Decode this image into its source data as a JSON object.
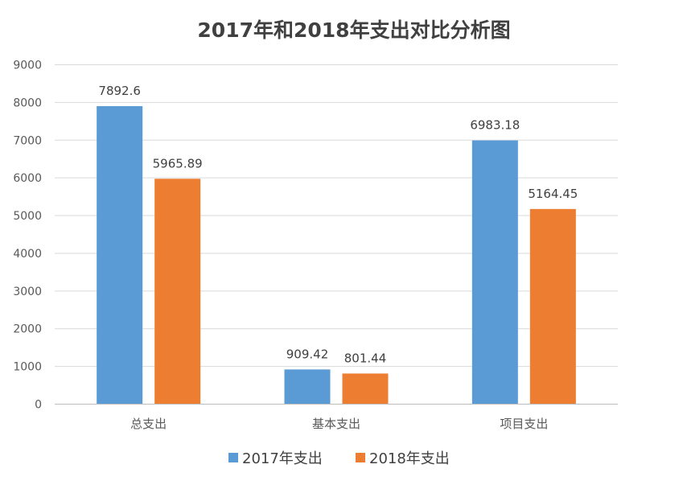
{
  "chart_data": {
    "type": "bar",
    "title": "2017年和2018年支出对比分析图",
    "categories": [
      "总支出",
      "基本支出",
      "项目支出"
    ],
    "series": [
      {
        "name": "2017年支出",
        "values": [
          7892.6,
          909.42,
          6983.18
        ],
        "color": "#5B9BD5",
        "labels": [
          "7892.6",
          "909.42",
          "6983.18"
        ]
      },
      {
        "name": "2018年支出",
        "values": [
          5965.89,
          801.44,
          5164.45
        ],
        "color": "#ED7D31",
        "labels": [
          "5965.89",
          "801.44",
          "5164.45"
        ]
      }
    ],
    "ylim": [
      0,
      9000
    ],
    "yticks": [
      "0",
      "1000",
      "2000",
      "3000",
      "4000",
      "5000",
      "6000",
      "7000",
      "8000",
      "9000"
    ],
    "grid": true,
    "legend": "bottom",
    "xlabel": "",
    "ylabel": ""
  }
}
